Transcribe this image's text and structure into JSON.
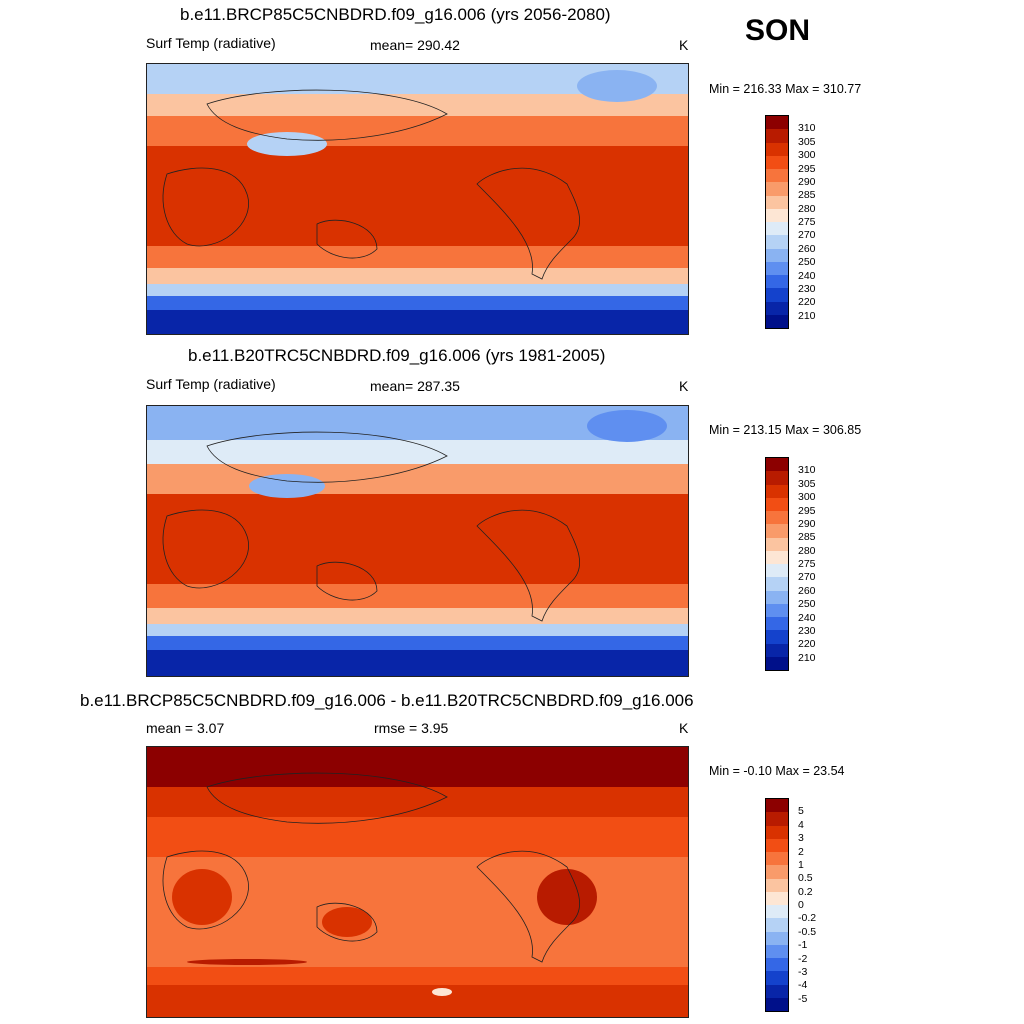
{
  "season": "SON",
  "units": "K",
  "panels": [
    {
      "title": "b.e11.BRCP85C5CNBDRD.f09_g16.006 (yrs 2056-2080)",
      "variable": "Surf Temp (radiative)",
      "mean_label": "mean= 290.42",
      "units": "K",
      "minmax": "Min = 216.33 Max = 310.77",
      "colorbar": {
        "labels": [
          "310",
          "305",
          "300",
          "295",
          "290",
          "285",
          "280",
          "275",
          "270",
          "260",
          "250",
          "240",
          "230",
          "220",
          "210"
        ],
        "colors": [
          "#8c0000",
          "#b81b00",
          "#d93200",
          "#f24e14",
          "#f7743c",
          "#f99b6a",
          "#fbc4a0",
          "#fde6d4",
          "#deebf7",
          "#b5d2f5",
          "#8ab3f2",
          "#5f8ff0",
          "#3467e6",
          "#1442cc",
          "#0825a8",
          "#00108a"
        ]
      }
    },
    {
      "title": "b.e11.B20TRC5CNBDRD.f09_g16.006 (yrs 1981-2005)",
      "variable": "Surf Temp (radiative)",
      "mean_label": "mean= 287.35",
      "units": "K",
      "minmax": "Min = 213.15 Max = 306.85",
      "colorbar": {
        "labels": [
          "310",
          "305",
          "300",
          "295",
          "290",
          "285",
          "280",
          "275",
          "270",
          "260",
          "250",
          "240",
          "230",
          "220",
          "210"
        ],
        "colors": [
          "#8c0000",
          "#b81b00",
          "#d93200",
          "#f24e14",
          "#f7743c",
          "#f99b6a",
          "#fbc4a0",
          "#fde6d4",
          "#deebf7",
          "#b5d2f5",
          "#8ab3f2",
          "#5f8ff0",
          "#3467e6",
          "#1442cc",
          "#0825a8",
          "#00108a"
        ]
      }
    },
    {
      "title": "b.e11.BRCP85C5CNBDRD.f09_g16.006 - b.e11.B20TRC5CNBDRD.f09_g16.006",
      "mean_label": "mean =   3.07",
      "rmse_label": "rmse =   3.95",
      "units": "K",
      "minmax": "Min =  -0.10 Max =  23.54",
      "colorbar": {
        "labels": [
          "5",
          "4",
          "3",
          "2",
          "1",
          "0.5",
          "0.2",
          "0",
          "-0.2",
          "-0.5",
          "-1",
          "-2",
          "-3",
          "-4",
          "-5"
        ],
        "colors": [
          "#8c0000",
          "#b81b00",
          "#d93200",
          "#f24e14",
          "#f7743c",
          "#f99b6a",
          "#fbc4a0",
          "#fde6d4",
          "#deebf7",
          "#b5d2f5",
          "#8ab3f2",
          "#5f8ff0",
          "#3467e6",
          "#1442cc",
          "#0825a8",
          "#00108a"
        ]
      }
    }
  ]
}
